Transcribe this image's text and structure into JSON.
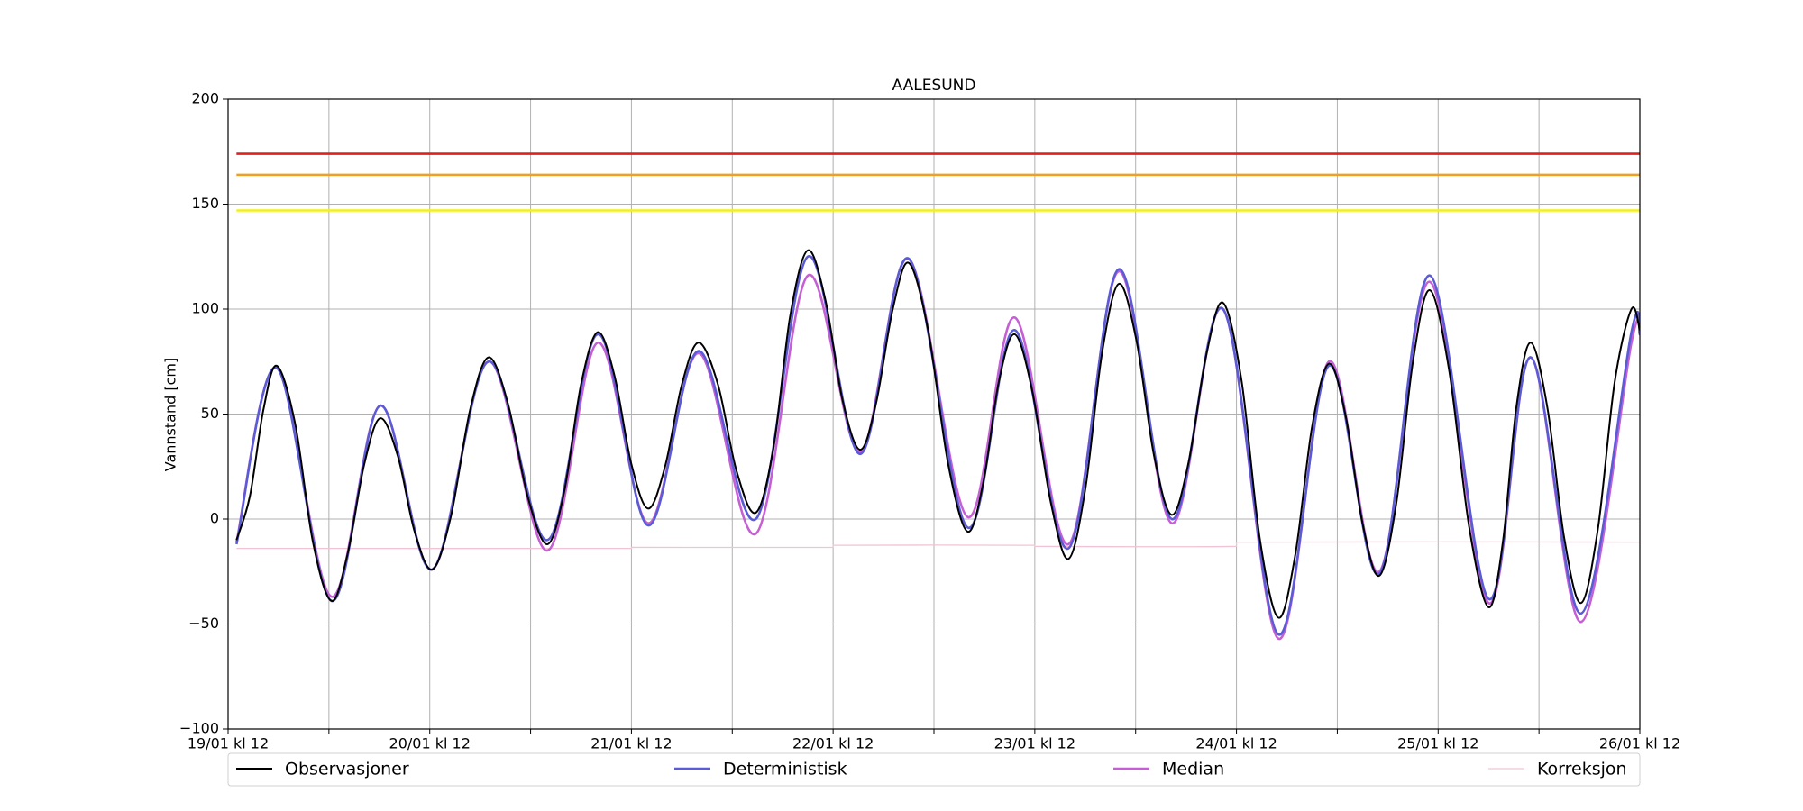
{
  "chart_data": {
    "type": "line",
    "title": "AALESUND",
    "y_label": "Vannstand [cm]",
    "xlim": [
      0,
      168
    ],
    "xticks": [
      {
        "value": 0,
        "label": "19/01 kl 12"
      },
      {
        "value": 24,
        "label": "20/01 kl 12"
      },
      {
        "value": 48,
        "label": "21/01 kl 12"
      },
      {
        "value": 72,
        "label": "22/01 kl 12"
      },
      {
        "value": 96,
        "label": "23/01 kl 12"
      },
      {
        "value": 120,
        "label": "24/01 kl 12"
      },
      {
        "value": 144,
        "label": "25/01 kl 12"
      },
      {
        "value": 168,
        "label": "26/01 kl 12"
      }
    ],
    "xminor_ticks": [
      12,
      36,
      60,
      84,
      108,
      132,
      156
    ],
    "ylim": [
      -100,
      200
    ],
    "yticks": [
      {
        "value": -100,
        "label": "−100"
      },
      {
        "value": -50,
        "label": "−50"
      },
      0,
      50,
      100,
      150,
      200
    ],
    "grid": true,
    "legend": "bottom",
    "reference_lines": [
      {
        "value": 174,
        "color": "#e0201c",
        "x": [
          1,
          168
        ]
      },
      {
        "value": 164,
        "color": "#f0a020",
        "x": [
          1,
          168
        ]
      },
      {
        "value": 147,
        "color": "#f5f014",
        "x": [
          1,
          168
        ]
      }
    ],
    "series": [
      {
        "name": "Observasjoner",
        "color": "#000000",
        "width": 2,
        "x": [
          1,
          2.6,
          4.2,
          5.8,
          8,
          10.1,
          12.3,
          14.2,
          16.2,
          18.1,
          20.2,
          22.2,
          24.3,
          26.5,
          28.8,
          31,
          33.3,
          35.7,
          38,
          40,
          42,
          44,
          46,
          48,
          50,
          52,
          54,
          56,
          58.3,
          60.5,
          62.8,
          64.9,
          66.9,
          69,
          71.1,
          73.1,
          75.2,
          77.1,
          79.1,
          81,
          83.3,
          85.7,
          88,
          89.9,
          91.7,
          93.6,
          95.7,
          97.9,
          100,
          102,
          104,
          106,
          108.1,
          110.2,
          112.3,
          114.3,
          116.4,
          118.4,
          120.6,
          122.8,
          125,
          127,
          129,
          131,
          133,
          135,
          137,
          139,
          141,
          143,
          145.3,
          147.7,
          150,
          151.7,
          153.3,
          155,
          157,
          159,
          161,
          163,
          165,
          167,
          168
        ],
        "values": [
          -10,
          11,
          52,
          73,
          45,
          -11,
          -39,
          -17,
          26,
          48,
          30,
          -6,
          -24,
          1,
          52,
          77,
          55,
          10,
          -12,
          13,
          64,
          89,
          68,
          26,
          5,
          25,
          64,
          84,
          64,
          23,
          3,
          34,
          97,
          128,
          104,
          57,
          33,
          55,
          100,
          122,
          90,
          26,
          -6,
          18,
          65,
          88,
          61,
          8,
          -19,
          14,
          79,
          112,
          85,
          30,
          2,
          27,
          78,
          103,
          66,
          -10,
          -47,
          -17,
          44,
          74,
          49,
          -2,
          -27,
          7,
          75,
          109,
          71,
          -4,
          -42,
          -11,
          53,
          84,
          53,
          -9,
          -40,
          -5,
          65,
          100,
          90
        ]
      },
      {
        "name": "Deterministisk",
        "color": "#5b5bd6",
        "width": 2.6,
        "x": [
          1,
          5.8,
          12.3,
          18.1,
          24.3,
          31,
          38,
          44,
          50,
          56,
          62.8,
          69,
          75.2,
          81,
          88,
          93.6,
          100,
          106,
          112.3,
          118.4,
          125,
          131,
          137,
          143,
          150,
          155,
          161,
          167,
          168
        ],
        "values": [
          -12,
          72,
          -39,
          54,
          -24,
          75,
          -10,
          88,
          -3,
          80,
          0,
          125,
          31,
          124,
          -4,
          90,
          -14,
          119,
          0,
          100,
          -55,
          73,
          -26,
          116,
          -38,
          77,
          -45,
          89,
          88
        ]
      },
      {
        "name": "Median",
        "color": "#c55fd4",
        "width": 2.6,
        "x": [
          1,
          5.8,
          12.3,
          18.1,
          24.3,
          31,
          38,
          44,
          50,
          56,
          62.8,
          69,
          75.2,
          81,
          88,
          93.6,
          100,
          106,
          112.3,
          118.4,
          125,
          131,
          137,
          143,
          150,
          155,
          161,
          167,
          168
        ],
        "values": [
          -11,
          72,
          -37,
          54,
          -24,
          75,
          -15,
          84,
          -2,
          79,
          -7,
          116,
          32,
          124,
          1,
          96,
          -12,
          118,
          -2,
          100,
          -57,
          75,
          -25,
          113,
          -40,
          77,
          -49,
          84,
          88
        ]
      },
      {
        "name": "Korreksjon",
        "color": "#f0c4d4",
        "width": 1.3,
        "x": [
          1,
          48,
          48,
          72,
          72,
          96,
          96,
          120,
          120,
          168
        ],
        "values": [
          -14,
          -14,
          -13.5,
          -13.5,
          -12.5,
          -12.5,
          -13,
          -13,
          -11,
          -11
        ]
      }
    ]
  }
}
